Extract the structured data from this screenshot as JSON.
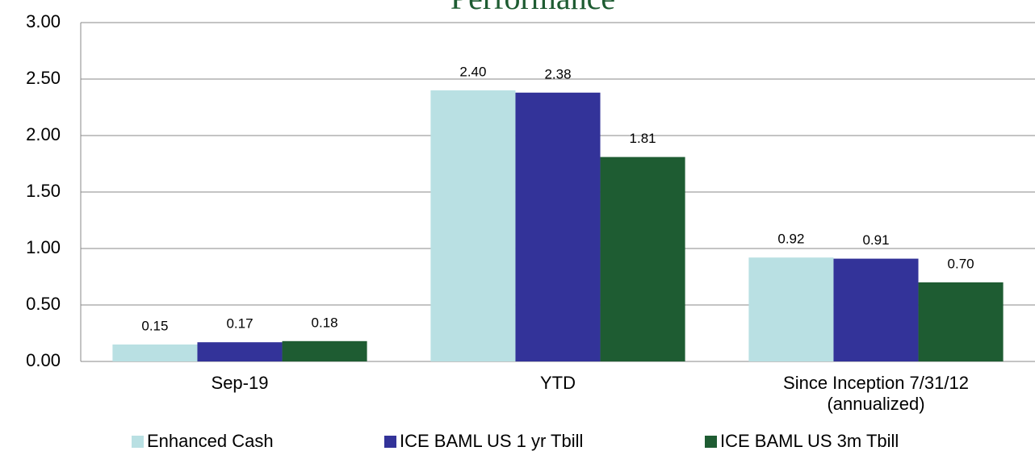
{
  "chart_data": {
    "type": "bar",
    "title": "Performance",
    "categories": [
      "Sep-19",
      "YTD",
      "Since Inception 7/31/12 (annualized)"
    ],
    "series": [
      {
        "name": "Enhanced Cash",
        "color": "#b9e0e3",
        "values": [
          0.15,
          2.4,
          0.92
        ],
        "value_labels": [
          "0.15",
          "2.40",
          "0.92"
        ]
      },
      {
        "name": "ICE BAML US 1 yr Tbill",
        "color": "#333399",
        "values": [
          0.17,
          2.38,
          0.91
        ],
        "value_labels": [
          "0.17",
          "2.38",
          "0.91"
        ]
      },
      {
        "name": "ICE BAML US 3m Tbill",
        "color": "#1e5c32",
        "values": [
          0.18,
          1.81,
          0.7
        ],
        "value_labels": [
          "0.18",
          "1.81",
          "0.70"
        ]
      }
    ],
    "ylim": [
      0,
      3
    ],
    "yticks": [
      {
        "value": 0,
        "label": "0.00"
      },
      {
        "value": 0.5,
        "label": "0.50"
      },
      {
        "value": 1,
        "label": "1.00"
      },
      {
        "value": 1.5,
        "label": "1.50"
      },
      {
        "value": 2,
        "label": "2.00"
      },
      {
        "value": 2.5,
        "label": "2.50"
      },
      {
        "value": 3,
        "label": "3.00"
      }
    ],
    "grid": true,
    "legend": "bottom"
  }
}
